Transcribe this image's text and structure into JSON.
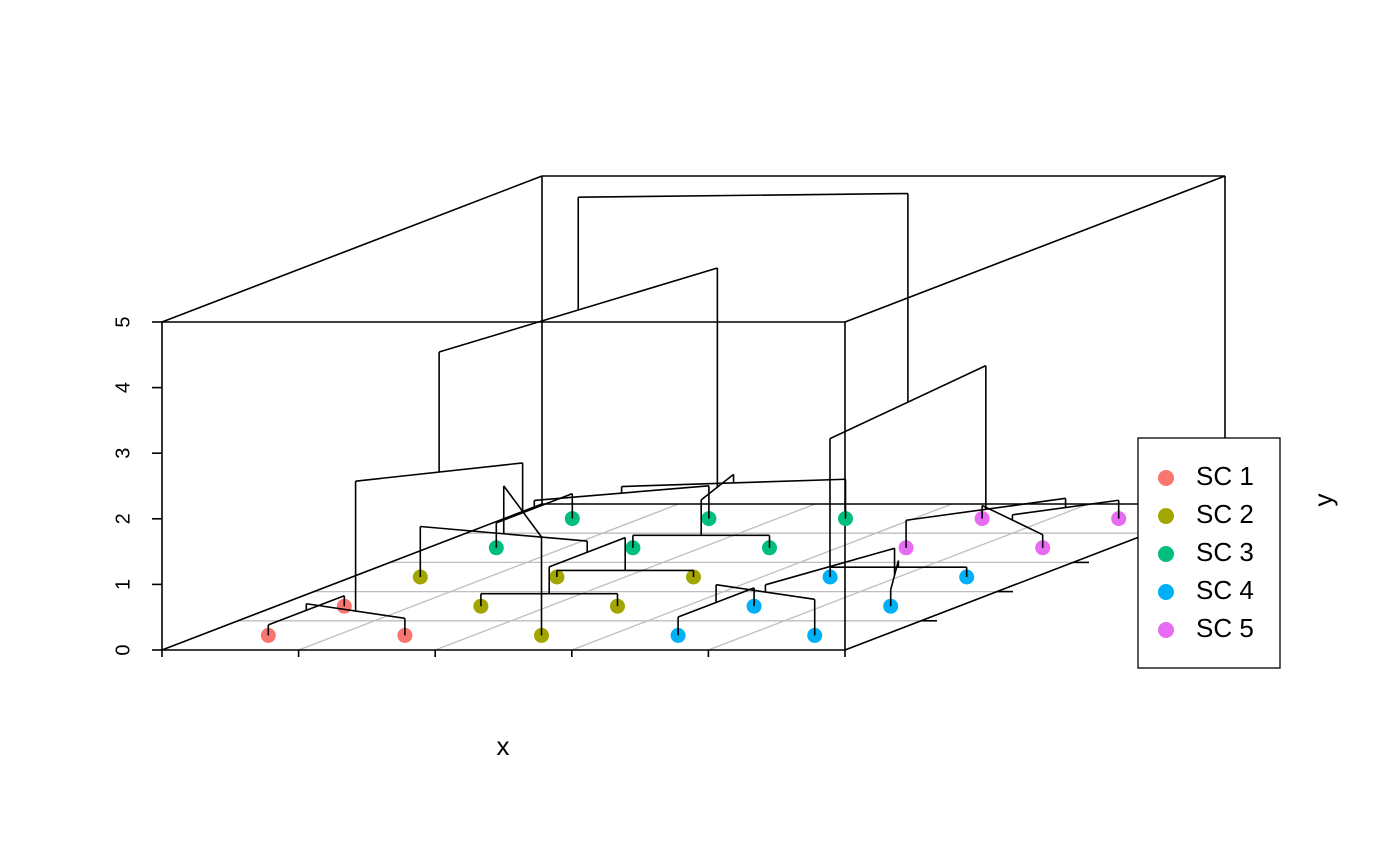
{
  "chart_data": {
    "type": "scatter3d",
    "xlabel": "x",
    "ylabel": "y",
    "xlim": [
      0,
      5
    ],
    "ylim": [
      0,
      5
    ],
    "zlim": [
      0,
      5
    ],
    "xticks": [
      0,
      1,
      2,
      3,
      4,
      5
    ],
    "yticks": [
      1,
      2,
      3,
      4
    ],
    "zticks": [
      0,
      1,
      2,
      3,
      4,
      5
    ],
    "grid": true,
    "legend": "right",
    "series": [
      {
        "name": "SC 1",
        "color": "#F8766D",
        "x": [
          0.5,
          0.5,
          1.5
        ],
        "y": [
          0.5,
          1.5,
          0.5
        ],
        "z": [
          0,
          0,
          0
        ]
      },
      {
        "name": "SC 2",
        "color": "#A3A500",
        "x": [
          2.5,
          1.5,
          2.5,
          0.5,
          1.5,
          2.5
        ],
        "y": [
          0.5,
          1.5,
          1.5,
          2.5,
          2.5,
          2.5
        ],
        "z": [
          0,
          0,
          0,
          0,
          0,
          0
        ]
      },
      {
        "name": "SC 3",
        "color": "#00BF7D",
        "x": [
          0.5,
          1.5,
          2.5,
          0.5,
          1.5,
          2.5
        ],
        "y": [
          3.5,
          3.5,
          3.5,
          4.5,
          4.5,
          4.5
        ],
        "z": [
          0,
          0,
          0,
          0,
          0,
          0
        ]
      },
      {
        "name": "SC 4",
        "color": "#00B0F6",
        "x": [
          3.5,
          4.5,
          3.5,
          4.5,
          3.5,
          4.5
        ],
        "y": [
          0.5,
          0.5,
          1.5,
          1.5,
          2.5,
          2.5
        ],
        "z": [
          0,
          0,
          0,
          0,
          0,
          0
        ]
      },
      {
        "name": "SC 5",
        "color": "#E76BF3",
        "x": [
          3.5,
          4.5,
          3.5,
          4.5
        ],
        "y": [
          3.5,
          3.5,
          4.5,
          4.5
        ],
        "z": [
          0,
          0,
          0,
          0
        ]
      }
    ],
    "merges": [
      [
        -1,
        -2,
        0.16
      ],
      [
        1,
        -3,
        0.26
      ],
      [
        -5,
        -6,
        0.19
      ],
      [
        -8,
        -9,
        0.1
      ],
      [
        3,
        4,
        0.6
      ],
      [
        -7,
        5,
        0.77
      ],
      [
        6,
        -4,
        1.5
      ],
      [
        2,
        7,
        2.24
      ],
      [
        -11,
        -12,
        0.19
      ],
      [
        -10,
        -13,
        0.38
      ],
      [
        10,
        -14,
        0.5
      ],
      [
        11,
        -15,
        0.6
      ],
      [
        9,
        12,
        0.73
      ],
      [
        8,
        13,
        4.07
      ],
      [
        -16,
        -18,
        0.28
      ],
      [
        15,
        -17,
        0.55
      ],
      [
        -20,
        -21,
        0.15
      ],
      [
        17,
        -19,
        0.25
      ],
      [
        16,
        18,
        0.66
      ],
      [
        -24,
        -23,
        0.2
      ],
      [
        20,
        -25,
        0.28
      ],
      [
        21,
        -22,
        0.42
      ],
      [
        19,
        22,
        2.61
      ],
      [
        14,
        23,
        5.79
      ]
    ]
  }
}
